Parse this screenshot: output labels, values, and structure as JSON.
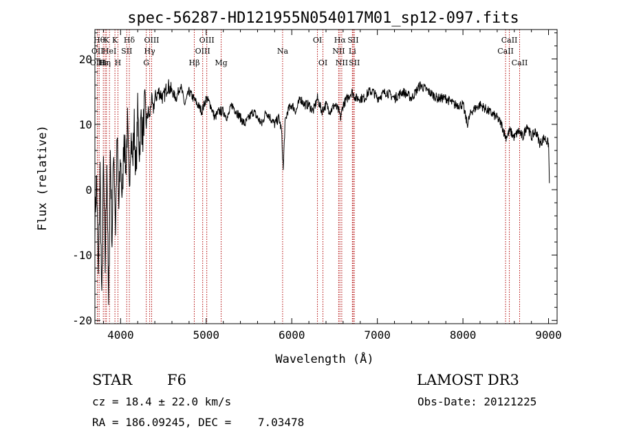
{
  "chart_data": {
    "type": "line",
    "title": "spec-56287-HD121955N054017M01_sp12-097.fits",
    "xlabel": "Wavelength (Å)",
    "ylabel": "Flux (relative)",
    "xlim": [
      3700,
      9100
    ],
    "ylim": [
      -20.5,
      24.5
    ],
    "x_ticks": [
      4000,
      5000,
      6000,
      7000,
      8000,
      9000
    ],
    "y_ticks": [
      -20,
      -10,
      0,
      10,
      20
    ],
    "line_color": "#000000",
    "marker_color": "#b00000",
    "series": [
      {
        "name": "flux",
        "wavelength": [
          3700,
          3720,
          3740,
          3760,
          3780,
          3800,
          3820,
          3840,
          3860,
          3880,
          3900,
          3920,
          3940,
          3960,
          3980,
          4000,
          4020,
          4040,
          4060,
          4080,
          4100,
          4120,
          4140,
          4160,
          4180,
          4200,
          4220,
          4240,
          4260,
          4280,
          4300,
          4320,
          4340,
          4360,
          4380,
          4400,
          4450,
          4500,
          4550,
          4600,
          4650,
          4700,
          4750,
          4800,
          4850,
          4900,
          4950,
          5000,
          5050,
          5100,
          5150,
          5200,
          5250,
          5300,
          5350,
          5400,
          5450,
          5500,
          5550,
          5600,
          5650,
          5700,
          5750,
          5800,
          5850,
          5880,
          5900,
          5920,
          5950,
          6000,
          6050,
          6100,
          6150,
          6200,
          6250,
          6300,
          6350,
          6400,
          6450,
          6500,
          6550,
          6570,
          6600,
          6650,
          6700,
          6750,
          6800,
          6850,
          6900,
          6950,
          7000,
          7100,
          7200,
          7300,
          7400,
          7500,
          7600,
          7700,
          7800,
          7900,
          8000,
          8050,
          8100,
          8200,
          8300,
          8400,
          8450,
          8500,
          8550,
          8600,
          8650,
          8700,
          8750,
          8800,
          8850,
          8900,
          8950,
          9000,
          9010
        ],
        "flux": [
          -5,
          2,
          -14,
          3,
          -18,
          4,
          -12,
          5,
          -19,
          6,
          -8,
          7,
          -6,
          8,
          -3,
          5,
          -2,
          9,
          3,
          10,
          0,
          9,
          4,
          10,
          2,
          12,
          6,
          11,
          8,
          13,
          10,
          12,
          11,
          14,
          12,
          14,
          15,
          14,
          16,
          15,
          14,
          16,
          13,
          15,
          14,
          13,
          12,
          14,
          13,
          11,
          12,
          12,
          11,
          13,
          12,
          11,
          10,
          11,
          12,
          11,
          10,
          12,
          11,
          10,
          11,
          9,
          3,
          10,
          12,
          13,
          12,
          14,
          13,
          13,
          12,
          14,
          12,
          13,
          12,
          13,
          12,
          11,
          13,
          14,
          15,
          14,
          14,
          14,
          15,
          15,
          14,
          15,
          14,
          15,
          14,
          16,
          15,
          14,
          14,
          13,
          13,
          10,
          12,
          13,
          12,
          11,
          10,
          8,
          9,
          8,
          9,
          8,
          10,
          8,
          9,
          7,
          8,
          7,
          1
        ]
      }
    ],
    "line_markers": [
      {
        "wl": 3750,
        "label": "Hθ",
        "row": 0
      },
      {
        "wl": 3730,
        "label": "OII",
        "row": 1
      },
      {
        "wl": 3730,
        "label": "OIII",
        "row": 2
      },
      {
        "wl": 3798,
        "label": "Hε",
        "row": 2
      },
      {
        "wl": 3820,
        "label": "Hη",
        "row": 2
      },
      {
        "wl": 3835,
        "label": "K",
        "row": 0
      },
      {
        "wl": 3870,
        "label": "HeI",
        "row": 1
      },
      {
        "wl": 3934,
        "label": "K",
        "row": 0
      },
      {
        "wl": 3969,
        "label": "H",
        "row": 2
      },
      {
        "wl": 4072,
        "label": "SII",
        "row": 1
      },
      {
        "wl": 4102,
        "label": "Hδ",
        "row": 0
      },
      {
        "wl": 4300,
        "label": "G",
        "row": 2
      },
      {
        "wl": 4340,
        "label": "Hγ",
        "row": 1
      },
      {
        "wl": 4363,
        "label": "OIII",
        "row": 0
      },
      {
        "wl": 4861,
        "label": "Hβ",
        "row": 2
      },
      {
        "wl": 4959,
        "label": "OIII",
        "row": 1
      },
      {
        "wl": 5007,
        "label": "OIII",
        "row": 0
      },
      {
        "wl": 5175,
        "label": "Mg",
        "row": 2
      },
      {
        "wl": 5893,
        "label": "Na",
        "row": 1
      },
      {
        "wl": 6300,
        "label": "OI",
        "row": 0
      },
      {
        "wl": 6364,
        "label": "OI",
        "row": 2
      },
      {
        "wl": 6548,
        "label": "NII",
        "row": 1
      },
      {
        "wl": 6563,
        "label": "Hα",
        "row": 0
      },
      {
        "wl": 6584,
        "label": "NII",
        "row": 2
      },
      {
        "wl": 6708,
        "label": "Li",
        "row": 1
      },
      {
        "wl": 6717,
        "label": "SII",
        "row": 0
      },
      {
        "wl": 6731,
        "label": "SII",
        "row": 2
      },
      {
        "wl": 8498,
        "label": "CaII",
        "row": 1
      },
      {
        "wl": 8542,
        "label": "CaII",
        "row": 0
      },
      {
        "wl": 8662,
        "label": "CaII",
        "row": 2
      }
    ]
  },
  "info": {
    "object_type": "STAR",
    "subclass": "F6",
    "survey": "LAMOST DR3",
    "cz": "cz = 18.4 ± 22.0 km/s",
    "obs_date": "Obs-Date: 20121225",
    "radec": "RA = 186.09245, DEC =    7.03478"
  }
}
